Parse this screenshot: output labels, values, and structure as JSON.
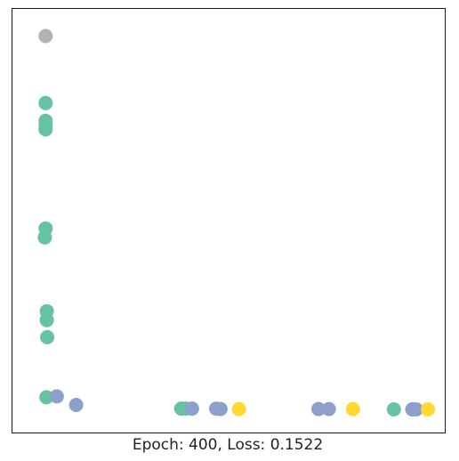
{
  "chart_data": {
    "type": "scatter",
    "title": "",
    "xlabel": "Epoch: 400, Loss: 0.1522",
    "ylabel": "",
    "xlim": [
      0,
      1
    ],
    "ylim": [
      0,
      1
    ],
    "axis_ticks": false,
    "grid": false,
    "legend": "none",
    "colors": {
      "green": "#66c2a5",
      "blue": "#8da0cb",
      "yellow": "#ffd92f",
      "gray": "#b3b3b3"
    },
    "points": [
      {
        "x": 0.045,
        "y": 0.955,
        "color": "gray"
      },
      {
        "x": 0.045,
        "y": 0.79,
        "color": "green"
      },
      {
        "x": 0.045,
        "y": 0.746,
        "color": "green"
      },
      {
        "x": 0.045,
        "y": 0.736,
        "color": "green"
      },
      {
        "x": 0.045,
        "y": 0.725,
        "color": "green"
      },
      {
        "x": 0.045,
        "y": 0.481,
        "color": "green"
      },
      {
        "x": 0.043,
        "y": 0.459,
        "color": "green"
      },
      {
        "x": 0.048,
        "y": 0.277,
        "color": "green"
      },
      {
        "x": 0.048,
        "y": 0.255,
        "color": "green"
      },
      {
        "x": 0.049,
        "y": 0.213,
        "color": "green"
      },
      {
        "x": 0.047,
        "y": 0.065,
        "color": "green"
      },
      {
        "x": 0.073,
        "y": 0.067,
        "color": "blue"
      },
      {
        "x": 0.121,
        "y": 0.046,
        "color": "blue"
      },
      {
        "x": 0.383,
        "y": 0.037,
        "color": "green"
      },
      {
        "x": 0.395,
        "y": 0.037,
        "color": "green"
      },
      {
        "x": 0.41,
        "y": 0.037,
        "color": "blue"
      },
      {
        "x": 0.47,
        "y": 0.037,
        "color": "blue"
      },
      {
        "x": 0.481,
        "y": 0.036,
        "color": "blue"
      },
      {
        "x": 0.527,
        "y": 0.036,
        "color": "yellow"
      },
      {
        "x": 0.725,
        "y": 0.036,
        "color": "blue"
      },
      {
        "x": 0.751,
        "y": 0.036,
        "color": "blue"
      },
      {
        "x": 0.811,
        "y": 0.036,
        "color": "yellow"
      },
      {
        "x": 0.913,
        "y": 0.035,
        "color": "green"
      },
      {
        "x": 0.959,
        "y": 0.035,
        "color": "blue"
      },
      {
        "x": 0.969,
        "y": 0.035,
        "color": "blue"
      },
      {
        "x": 0.998,
        "y": 0.035,
        "color": "yellow"
      }
    ]
  }
}
